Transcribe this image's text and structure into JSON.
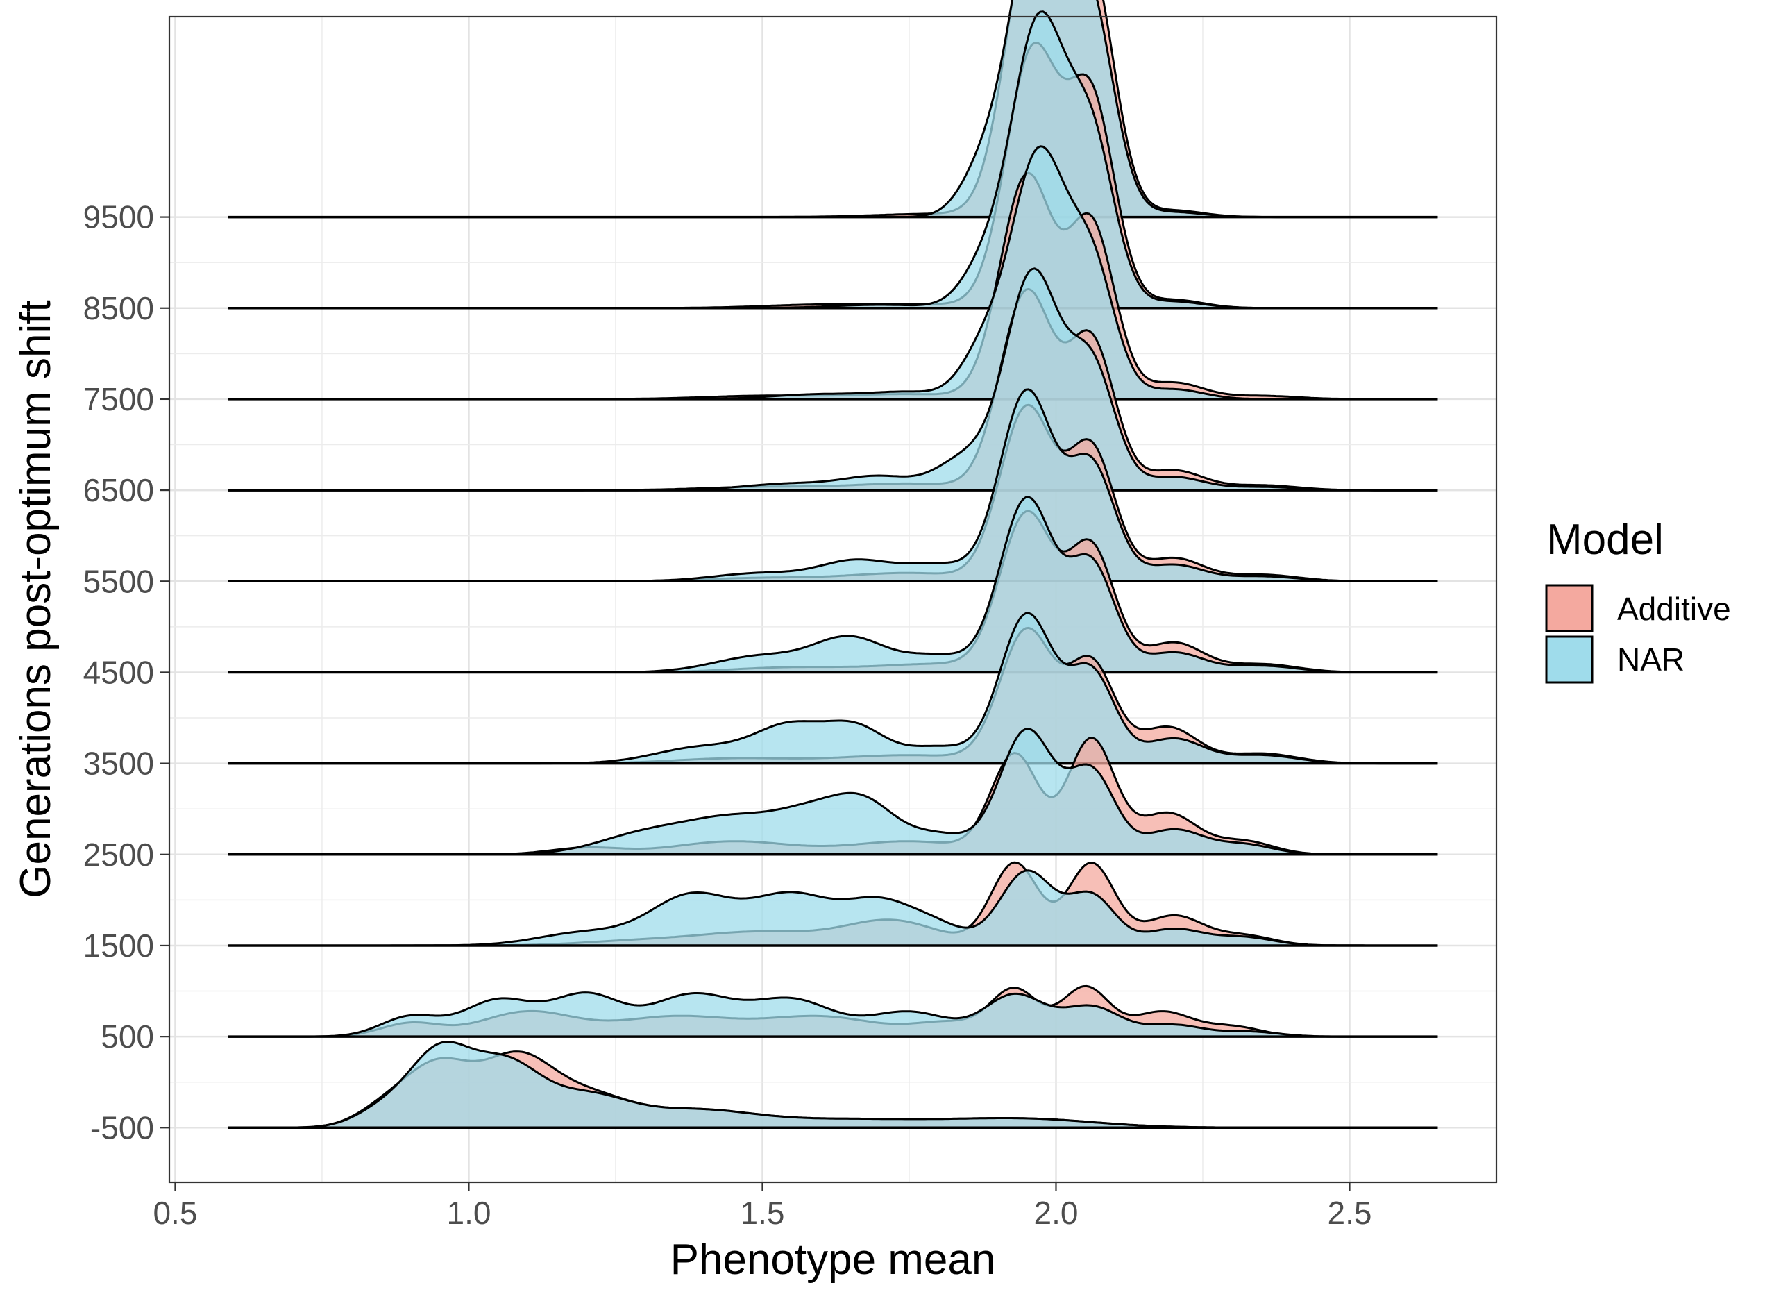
{
  "chart_data": {
    "type": "ridgeline-density",
    "xlabel": "Phenotype mean",
    "ylabel": "Generations post-optimum shift",
    "xlim": [
      0.49,
      2.75
    ],
    "x_ticks": [
      0.5,
      1.0,
      1.5,
      2.0,
      2.5
    ],
    "x_tick_labels": [
      "0.5",
      "1.0",
      "1.5",
      "2.0",
      "2.5"
    ],
    "x_range": [
      0.59,
      2.65
    ],
    "y_ticks": [
      -500,
      500,
      1500,
      2500,
      3500,
      4500,
      5500,
      6500,
      7500,
      8500,
      9500
    ],
    "y_tick_labels": [
      "-500",
      "500",
      "1500",
      "2500",
      "3500",
      "4500",
      "5500",
      "6500",
      "7500",
      "8500",
      "9500"
    ],
    "ylim": [
      -1100,
      11700
    ],
    "ridge_scale": 1800,
    "grid": true,
    "legend": {
      "title": "Model",
      "position": "right",
      "entries": [
        {
          "label": "Additive",
          "color": "#f4a99f"
        },
        {
          "label": "NAR",
          "color": "#9fdceb"
        }
      ]
    },
    "overlap_color": "#aab3b8",
    "fill_opacity": 0.75,
    "series": [
      {
        "name": "Additive",
        "color": "#f4a99f",
        "ridges": [
          {
            "generation": -500,
            "components": [
              [
                0.86,
                0.05,
                0.12
              ],
              [
                0.95,
                0.055,
                0.36
              ],
              [
                1.08,
                0.06,
                0.4
              ],
              [
                1.2,
                0.07,
                0.18
              ],
              [
                1.38,
                0.1,
                0.1
              ],
              [
                1.65,
                0.15,
                0.05
              ],
              [
                1.95,
                0.12,
                0.05
              ]
            ]
          },
          {
            "generation": 500,
            "components": [
              [
                0.9,
                0.05,
                0.08
              ],
              [
                1.1,
                0.08,
                0.15
              ],
              [
                1.35,
                0.1,
                0.12
              ],
              [
                1.6,
                0.1,
                0.12
              ],
              [
                1.82,
                0.06,
                0.08
              ],
              [
                1.93,
                0.04,
                0.28
              ],
              [
                2.05,
                0.04,
                0.3
              ],
              [
                2.18,
                0.05,
                0.15
              ],
              [
                2.3,
                0.05,
                0.06
              ]
            ]
          },
          {
            "generation": 1500,
            "components": [
              [
                1.3,
                0.1,
                0.03
              ],
              [
                1.5,
                0.1,
                0.08
              ],
              [
                1.72,
                0.08,
                0.15
              ],
              [
                1.93,
                0.04,
                0.5
              ],
              [
                2.06,
                0.04,
                0.5
              ],
              [
                2.2,
                0.05,
                0.18
              ],
              [
                2.32,
                0.05,
                0.06
              ]
            ]
          },
          {
            "generation": 2500,
            "components": [
              [
                1.2,
                0.06,
                0.04
              ],
              [
                1.45,
                0.1,
                0.08
              ],
              [
                1.75,
                0.1,
                0.08
              ],
              [
                1.93,
                0.04,
                0.6
              ],
              [
                2.06,
                0.04,
                0.7
              ],
              [
                2.19,
                0.05,
                0.25
              ],
              [
                2.32,
                0.05,
                0.08
              ]
            ]
          },
          {
            "generation": 3500,
            "components": [
              [
                1.45,
                0.1,
                0.03
              ],
              [
                1.75,
                0.12,
                0.05
              ],
              [
                1.95,
                0.045,
                0.8
              ],
              [
                2.06,
                0.04,
                0.6
              ],
              [
                2.19,
                0.05,
                0.22
              ],
              [
                2.35,
                0.06,
                0.06
              ]
            ]
          },
          {
            "generation": 4500,
            "components": [
              [
                1.55,
                0.1,
                0.03
              ],
              [
                1.8,
                0.1,
                0.05
              ],
              [
                1.95,
                0.045,
                0.95
              ],
              [
                2.06,
                0.04,
                0.75
              ],
              [
                2.2,
                0.05,
                0.18
              ],
              [
                2.35,
                0.06,
                0.05
              ]
            ]
          },
          {
            "generation": 5500,
            "components": [
              [
                1.5,
                0.1,
                0.02
              ],
              [
                1.75,
                0.1,
                0.05
              ],
              [
                1.95,
                0.045,
                1.05
              ],
              [
                2.06,
                0.04,
                0.8
              ],
              [
                2.2,
                0.05,
                0.14
              ],
              [
                2.35,
                0.06,
                0.04
              ]
            ]
          },
          {
            "generation": 6500,
            "components": [
              [
                1.5,
                0.1,
                0.02
              ],
              [
                1.75,
                0.1,
                0.04
              ],
              [
                1.95,
                0.045,
                1.2
              ],
              [
                2.06,
                0.04,
                0.9
              ],
              [
                2.2,
                0.05,
                0.12
              ],
              [
                2.35,
                0.06,
                0.03
              ]
            ]
          },
          {
            "generation": 7500,
            "components": [
              [
                1.5,
                0.1,
                0.02
              ],
              [
                1.75,
                0.1,
                0.03
              ],
              [
                1.95,
                0.045,
                1.35
              ],
              [
                2.06,
                0.04,
                1.05
              ],
              [
                2.2,
                0.05,
                0.1
              ],
              [
                2.35,
                0.06,
                0.02
              ]
            ]
          },
          {
            "generation": 8500,
            "components": [
              [
                1.6,
                0.1,
                0.02
              ],
              [
                1.8,
                0.1,
                0.02
              ],
              [
                1.96,
                0.045,
                1.55
              ],
              [
                2.06,
                0.04,
                1.25
              ],
              [
                2.2,
                0.05,
                0.05
              ]
            ]
          },
          {
            "generation": 9500,
            "components": [
              [
                1.8,
                0.1,
                0.02
              ],
              [
                1.96,
                0.045,
                1.75
              ],
              [
                2.06,
                0.04,
                1.45
              ],
              [
                2.2,
                0.05,
                0.04
              ]
            ]
          }
        ]
      },
      {
        "name": "NAR",
        "color": "#9fdceb",
        "ridges": [
          {
            "generation": -500,
            "components": [
              [
                0.86,
                0.05,
                0.12
              ],
              [
                0.95,
                0.05,
                0.42
              ],
              [
                1.06,
                0.06,
                0.38
              ],
              [
                1.2,
                0.07,
                0.18
              ],
              [
                1.38,
                0.1,
                0.1
              ],
              [
                1.65,
                0.15,
                0.05
              ],
              [
                1.95,
                0.12,
                0.05
              ]
            ]
          },
          {
            "generation": 500,
            "components": [
              [
                0.9,
                0.05,
                0.12
              ],
              [
                1.05,
                0.06,
                0.22
              ],
              [
                1.2,
                0.06,
                0.25
              ],
              [
                1.38,
                0.07,
                0.25
              ],
              [
                1.55,
                0.07,
                0.22
              ],
              [
                1.75,
                0.07,
                0.15
              ],
              [
                1.93,
                0.05,
                0.25
              ],
              [
                2.06,
                0.05,
                0.18
              ],
              [
                2.2,
                0.05,
                0.07
              ],
              [
                2.33,
                0.05,
                0.03
              ]
            ]
          },
          {
            "generation": 1500,
            "components": [
              [
                1.2,
                0.08,
                0.08
              ],
              [
                1.38,
                0.07,
                0.3
              ],
              [
                1.55,
                0.07,
                0.3
              ],
              [
                1.7,
                0.06,
                0.25
              ],
              [
                1.8,
                0.05,
                0.1
              ],
              [
                1.95,
                0.045,
                0.45
              ],
              [
                2.06,
                0.04,
                0.3
              ],
              [
                2.2,
                0.05,
                0.1
              ],
              [
                2.32,
                0.05,
                0.05
              ]
            ]
          },
          {
            "generation": 2500,
            "components": [
              [
                1.3,
                0.08,
                0.12
              ],
              [
                1.45,
                0.08,
                0.2
              ],
              [
                1.6,
                0.07,
                0.25
              ],
              [
                1.68,
                0.05,
                0.2
              ],
              [
                1.8,
                0.06,
                0.12
              ],
              [
                1.95,
                0.045,
                0.75
              ],
              [
                2.06,
                0.04,
                0.5
              ],
              [
                2.2,
                0.05,
                0.15
              ],
              [
                2.32,
                0.05,
                0.06
              ]
            ]
          },
          {
            "generation": 3500,
            "components": [
              [
                1.4,
                0.08,
                0.1
              ],
              [
                1.55,
                0.06,
                0.22
              ],
              [
                1.66,
                0.05,
                0.2
              ],
              [
                1.8,
                0.06,
                0.1
              ],
              [
                1.95,
                0.045,
                0.9
              ],
              [
                2.06,
                0.04,
                0.55
              ],
              [
                2.2,
                0.05,
                0.15
              ],
              [
                2.35,
                0.06,
                0.05
              ]
            ]
          },
          {
            "generation": 4500,
            "components": [
              [
                1.5,
                0.08,
                0.1
              ],
              [
                1.65,
                0.06,
                0.2
              ],
              [
                1.8,
                0.06,
                0.1
              ],
              [
                1.95,
                0.045,
                1.05
              ],
              [
                2.06,
                0.04,
                0.65
              ],
              [
                2.2,
                0.05,
                0.12
              ],
              [
                2.35,
                0.06,
                0.04
              ]
            ]
          },
          {
            "generation": 5500,
            "components": [
              [
                1.5,
                0.08,
                0.05
              ],
              [
                1.66,
                0.06,
                0.12
              ],
              [
                1.8,
                0.06,
                0.1
              ],
              [
                1.95,
                0.045,
                1.15
              ],
              [
                2.06,
                0.04,
                0.7
              ],
              [
                2.2,
                0.05,
                0.1
              ],
              [
                2.35,
                0.06,
                0.03
              ]
            ]
          },
          {
            "generation": 6500,
            "components": [
              [
                1.55,
                0.08,
                0.04
              ],
              [
                1.7,
                0.06,
                0.08
              ],
              [
                1.85,
                0.05,
                0.2
              ],
              [
                1.96,
                0.045,
                1.3
              ],
              [
                2.06,
                0.04,
                0.75
              ],
              [
                2.2,
                0.05,
                0.08
              ],
              [
                2.35,
                0.06,
                0.02
              ]
            ]
          },
          {
            "generation": 7500,
            "components": [
              [
                1.6,
                0.08,
                0.03
              ],
              [
                1.75,
                0.06,
                0.04
              ],
              [
                1.88,
                0.04,
                0.3
              ],
              [
                1.97,
                0.045,
                1.45
              ],
              [
                2.06,
                0.04,
                0.8
              ],
              [
                2.2,
                0.05,
                0.06
              ]
            ]
          },
          {
            "generation": 8500,
            "components": [
              [
                1.7,
                0.08,
                0.02
              ],
              [
                1.88,
                0.04,
                0.25
              ],
              [
                1.97,
                0.045,
                1.7
              ],
              [
                2.06,
                0.04,
                1.0
              ],
              [
                2.2,
                0.05,
                0.04
              ]
            ]
          },
          {
            "generation": 9500,
            "components": [
              [
                1.88,
                0.04,
                0.3
              ],
              [
                1.97,
                0.045,
                1.9
              ],
              [
                2.06,
                0.04,
                1.2
              ],
              [
                2.2,
                0.05,
                0.03
              ]
            ]
          }
        ]
      }
    ]
  }
}
